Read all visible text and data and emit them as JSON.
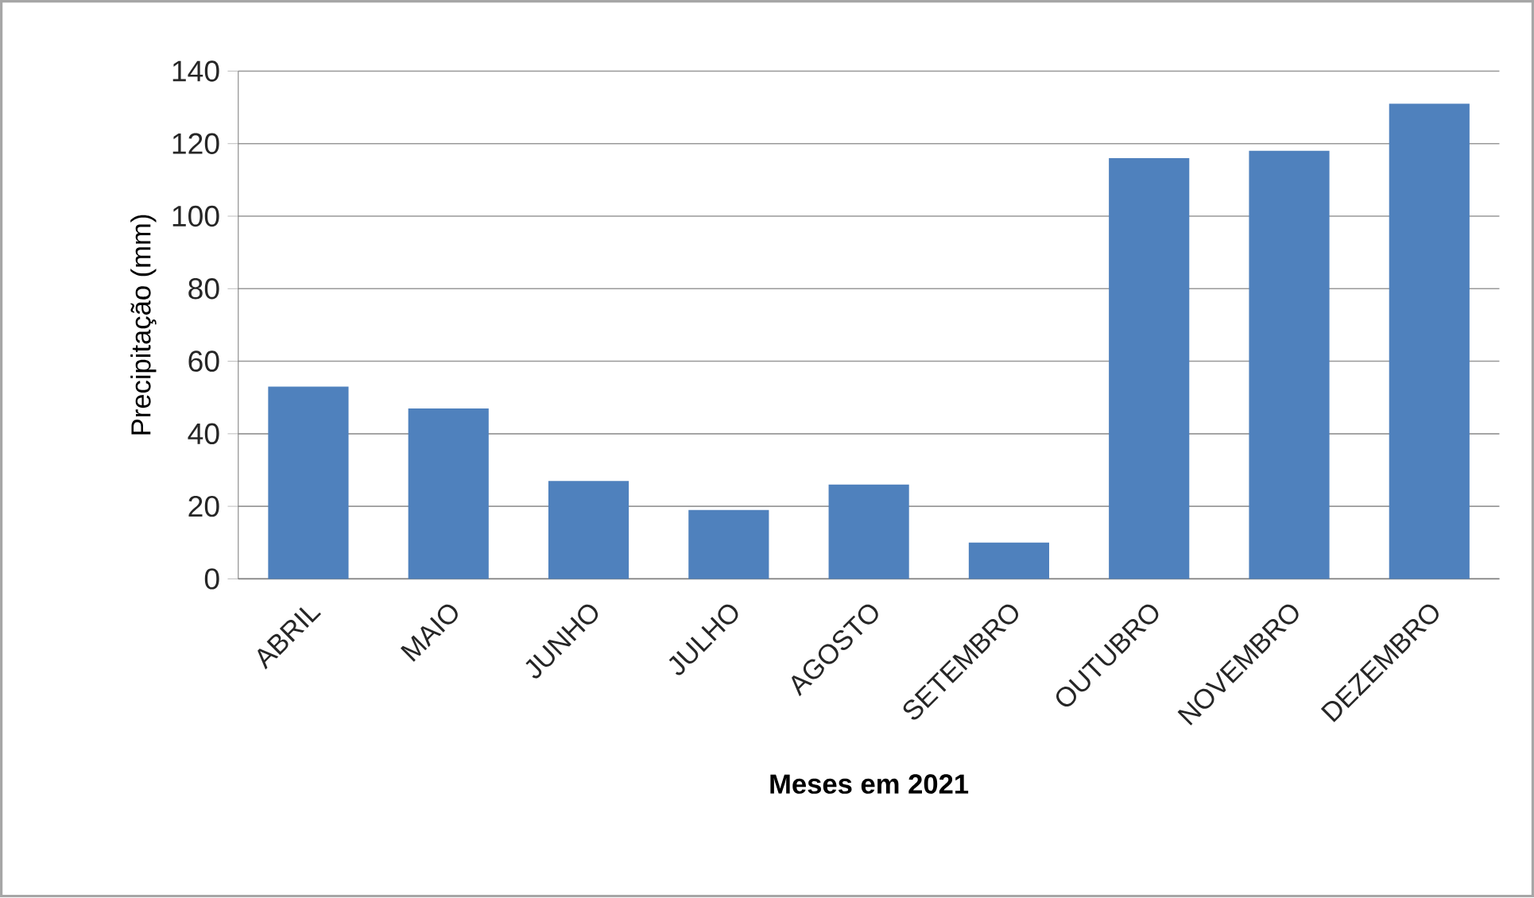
{
  "chart_data": {
    "type": "bar",
    "xlabel": "Meses em 2021",
    "ylabel": "Precipitação (mm)",
    "categories": [
      "ABRIL",
      "MAIO",
      "JUNHO",
      "JULHO",
      "AGOSTO",
      "SETEMBRO",
      "OUTUBRO",
      "NOVEMBRO",
      "DEZEMBRO"
    ],
    "values": [
      53,
      47,
      27,
      19,
      26,
      10,
      116,
      118,
      131
    ],
    "color": "#4f81bd",
    "ylim": [
      0,
      140
    ],
    "yticks": [
      0,
      20,
      40,
      60,
      80,
      100,
      120,
      140
    ],
    "grid": "y"
  }
}
